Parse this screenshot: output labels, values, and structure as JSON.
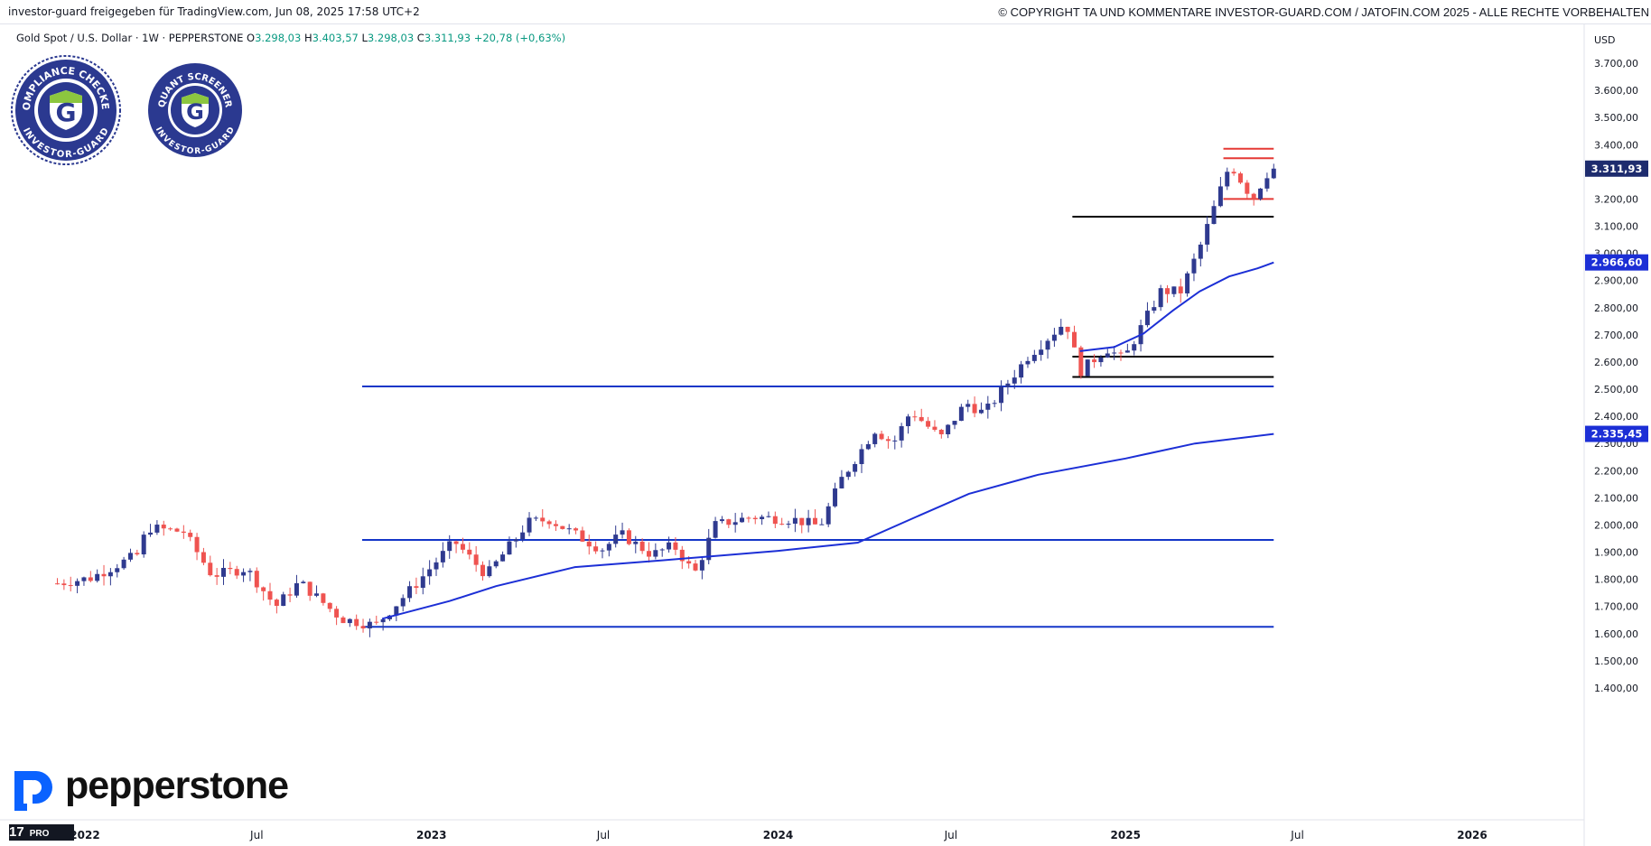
{
  "header": {
    "left_text": "investor-guard freigegeben für TradingView.com, Jun 08, 2025 17:58 UTC+2",
    "right_text": "© COPYRIGHT TA UND KOMMENTARE INVESTOR-GUARD.COM / JATOFIN.COM 2025 - ALLE RECHTE VORBEHALTEN"
  },
  "legend": {
    "symbol": "Gold Spot / U.S. Dollar · 1W · PEPPERSTONE",
    "o_label": "O",
    "o_value": "3.298,03",
    "h_label": "H",
    "h_value": "3.403,57",
    "l_label": "L",
    "l_value": "3.298,03",
    "c_label": "C",
    "c_value": "3.311,93",
    "change": "+20,78 (+0,63%)"
  },
  "badges": {
    "compliance_top": "COMPLIANCE CHECKED",
    "compliance_bottom": "INVESTOR-GUARD",
    "quant_top": "QUANT SCREENER",
    "quant_bottom": "INVESTOR-GUARD"
  },
  "branding": {
    "logo_text": "pepperstone",
    "tv_mark": "17",
    "tv_pro": "PRO"
  },
  "colors": {
    "up": "#2f3a8f",
    "down": "#ef5350",
    "ma": "#1c2fd6",
    "hline": "#1436c8",
    "price_tag_bg": "#1e2c6e",
    "ma_tag_bg": "#1c2fd6"
  },
  "chart_data": {
    "type": "candlestick",
    "currency": "USD",
    "y_ticks": [
      "3.700,00",
      "3.600,00",
      "3.500,00",
      "3.400,00",
      "3.300,00",
      "3.200,00",
      "3.100,00",
      "3.000,00",
      "2.900,00",
      "2.800,00",
      "2.700,00",
      "2.600,00",
      "2.500,00",
      "2.400,00",
      "2.300,00",
      "2.200,00",
      "2.100,00",
      "2.000,00",
      "1.900,00",
      "1.800,00",
      "1.700,00",
      "1.600,00",
      "1.500,00",
      "1.400,00"
    ],
    "y_tick_values": [
      3700,
      3600,
      3500,
      3400,
      3300,
      3200,
      3100,
      3000,
      2900,
      2800,
      2700,
      2600,
      2500,
      2400,
      2300,
      2200,
      2100,
      2000,
      1900,
      1800,
      1700,
      1600,
      1500,
      1400
    ],
    "ylim": [
      1350,
      3800
    ],
    "x_ticks": [
      {
        "label": "2022",
        "date": "2022-01-01"
      },
      {
        "label": "Jul",
        "date": "2022-07-01"
      },
      {
        "label": "2023",
        "date": "2023-01-01"
      },
      {
        "label": "Jul",
        "date": "2023-07-01"
      },
      {
        "label": "2024",
        "date": "2024-01-01"
      },
      {
        "label": "Jul",
        "date": "2024-07-01"
      },
      {
        "label": "2025",
        "date": "2025-01-01"
      },
      {
        "label": "Jul",
        "date": "2025-07-01"
      },
      {
        "label": "2026",
        "date": "2026-01-01"
      }
    ],
    "x_start": "2021-12-03",
    "price_tag": {
      "label": "3.311,93",
      "value": 3311.93
    },
    "ma_tags": [
      {
        "label": "2.966,60",
        "value": 2966.6
      },
      {
        "label": "2.335,45",
        "value": 2335.45
      }
    ],
    "keypoints": [
      [
        "2021-12-03",
        1785
      ],
      [
        "2022-01-07",
        1805
      ],
      [
        "2022-02-25",
        1890
      ],
      [
        "2022-03-08",
        1990
      ],
      [
        "2022-04-15",
        1975
      ],
      [
        "2022-05-15",
        1815
      ],
      [
        "2022-06-20",
        1840
      ],
      [
        "2022-07-21",
        1700
      ],
      [
        "2022-08-15",
        1790
      ],
      [
        "2022-09-28",
        1655
      ],
      [
        "2022-11-03",
        1630
      ],
      [
        "2022-12-15",
        1780
      ],
      [
        "2023-01-25",
        1940
      ],
      [
        "2023-02-28",
        1815
      ],
      [
        "2023-04-13",
        2010
      ],
      [
        "2023-05-05",
        2020
      ],
      [
        "2023-06-29",
        1910
      ],
      [
        "2023-07-20",
        1965
      ],
      [
        "2023-08-21",
        1890
      ],
      [
        "2023-09-13",
        1925
      ],
      [
        "2023-10-05",
        1820
      ],
      [
        "2023-10-27",
        2000
      ],
      [
        "2023-12-04",
        2030
      ],
      [
        "2024-01-18",
        2020
      ],
      [
        "2024-02-14",
        1995
      ],
      [
        "2024-03-08",
        2170
      ],
      [
        "2024-04-12",
        2350
      ],
      [
        "2024-05-01",
        2300
      ],
      [
        "2024-05-20",
        2420
      ],
      [
        "2024-06-20",
        2320
      ],
      [
        "2024-07-17",
        2450
      ],
      [
        "2024-08-05",
        2410
      ],
      [
        "2024-09-20",
        2620
      ],
      [
        "2024-10-30",
        2750
      ],
      [
        "2024-11-14",
        2565
      ],
      [
        "2024-12-12",
        2650
      ],
      [
        "2024-12-30",
        2610
      ],
      [
        "2025-02-07",
        2860
      ],
      [
        "2025-02-28",
        2860
      ],
      [
        "2025-03-20",
        3020
      ],
      [
        "2025-04-11",
        3235
      ],
      [
        "2025-04-21",
        3330
      ],
      [
        "2025-05-15",
        3200
      ],
      [
        "2025-05-29",
        3290
      ],
      [
        "2025-06-06",
        3311.93
      ]
    ],
    "moving_averages": [
      {
        "name": "MA",
        "points": [
          [
            "2022-11-10",
            1655
          ],
          [
            "2023-01-20",
            1720
          ],
          [
            "2023-03-10",
            1775
          ],
          [
            "2023-06-01",
            1845
          ],
          [
            "2023-09-01",
            1870
          ],
          [
            "2024-01-01",
            1905
          ],
          [
            "2024-03-25",
            1935
          ],
          [
            "2024-06-01",
            2040
          ],
          [
            "2024-07-20",
            2115
          ],
          [
            "2024-10-01",
            2185
          ],
          [
            "2025-01-01",
            2245
          ],
          [
            "2025-03-15",
            2300
          ],
          [
            "2025-06-06",
            2335.45
          ]
        ]
      },
      {
        "name": "MA",
        "points": [
          [
            "2024-11-14",
            2640
          ],
          [
            "2024-12-20",
            2655
          ],
          [
            "2025-01-20",
            2705
          ],
          [
            "2025-02-20",
            2790
          ],
          [
            "2025-03-20",
            2860
          ],
          [
            "2025-04-20",
            2915
          ],
          [
            "2025-05-20",
            2945
          ],
          [
            "2025-06-06",
            2966.6
          ]
        ]
      }
    ],
    "horizontal_lines": [
      {
        "value": 2510,
        "color": "blue",
        "from": "2022-10-20",
        "to": "2025-06-06"
      },
      {
        "value": 1945,
        "color": "blue",
        "from": "2022-10-20",
        "to": "2025-06-06"
      },
      {
        "value": 1625,
        "color": "blue",
        "from": "2022-10-20",
        "to": "2025-06-06"
      },
      {
        "value": 3135,
        "color": "black",
        "from": "2024-11-06",
        "to": "2025-06-06"
      },
      {
        "value": 2620,
        "color": "black",
        "from": "2024-11-06",
        "to": "2025-06-06"
      },
      {
        "value": 2545,
        "color": "black",
        "from": "2024-11-06",
        "to": "2025-06-06"
      },
      {
        "value": 3385,
        "color": "red",
        "from": "2025-04-14",
        "to": "2025-06-06"
      },
      {
        "value": 3350,
        "color": "red",
        "from": "2025-04-14",
        "to": "2025-06-06"
      },
      {
        "value": 3200,
        "color": "red",
        "from": "2025-04-14",
        "to": "2025-06-06"
      }
    ]
  }
}
